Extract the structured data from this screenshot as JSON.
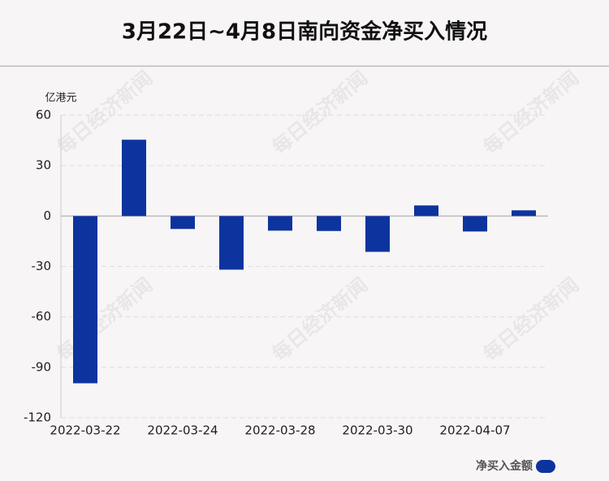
{
  "chart_data": {
    "type": "bar",
    "title": "3月22日~4月8日南向资金净买入情况",
    "y_label": "亿港元",
    "watermark": "每日经济新闻",
    "categories": [
      "2022-03-22",
      null,
      "2022-03-24",
      null,
      "2022-03-28",
      null,
      "2022-03-30",
      null,
      "2022-04-07",
      null
    ],
    "series": [
      {
        "name": "净买入金额",
        "color": "#0d349e",
        "values": [
          -99.5,
          45.4,
          -7.7,
          -31.9,
          -8.7,
          -8.9,
          -21.3,
          6.3,
          -9.2,
          3.4
        ]
      }
    ],
    "ylim": [
      -120,
      60
    ],
    "yticks": [
      60,
      30,
      0,
      -30,
      -60,
      -90,
      -120
    ],
    "grid": true,
    "legend": "lower right"
  }
}
